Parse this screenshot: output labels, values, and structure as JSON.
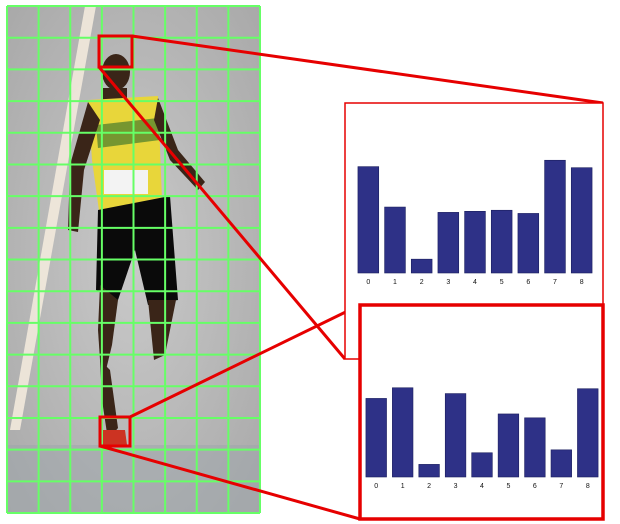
{
  "colors": {
    "grid": "#66ff66",
    "highlight": "#e60000",
    "bar": "#2e3187",
    "background_photo": "#b9b9b9"
  },
  "photo": {
    "description_icon": "runner-photo"
  },
  "chart_data": [
    {
      "type": "bar",
      "categories": [
        "0",
        "1",
        "2",
        "3",
        "4",
        "5",
        "6",
        "7",
        "8"
      ],
      "values": [
        1.0,
        0.62,
        0.13,
        0.57,
        0.58,
        0.59,
        0.56,
        1.06,
        0.99
      ],
      "ylim": [
        0,
        1.1
      ],
      "grid": false,
      "title": "",
      "xlabel": "",
      "ylabel": ""
    },
    {
      "type": "bar",
      "categories": [
        "0",
        "1",
        "2",
        "3",
        "4",
        "5",
        "6",
        "7",
        "8"
      ],
      "values": [
        0.81,
        0.92,
        0.13,
        0.86,
        0.25,
        0.65,
        0.61,
        0.28,
        0.91
      ],
      "ylim": [
        0,
        1.0
      ],
      "grid": false,
      "title": "",
      "xlabel": "",
      "ylabel": ""
    }
  ]
}
